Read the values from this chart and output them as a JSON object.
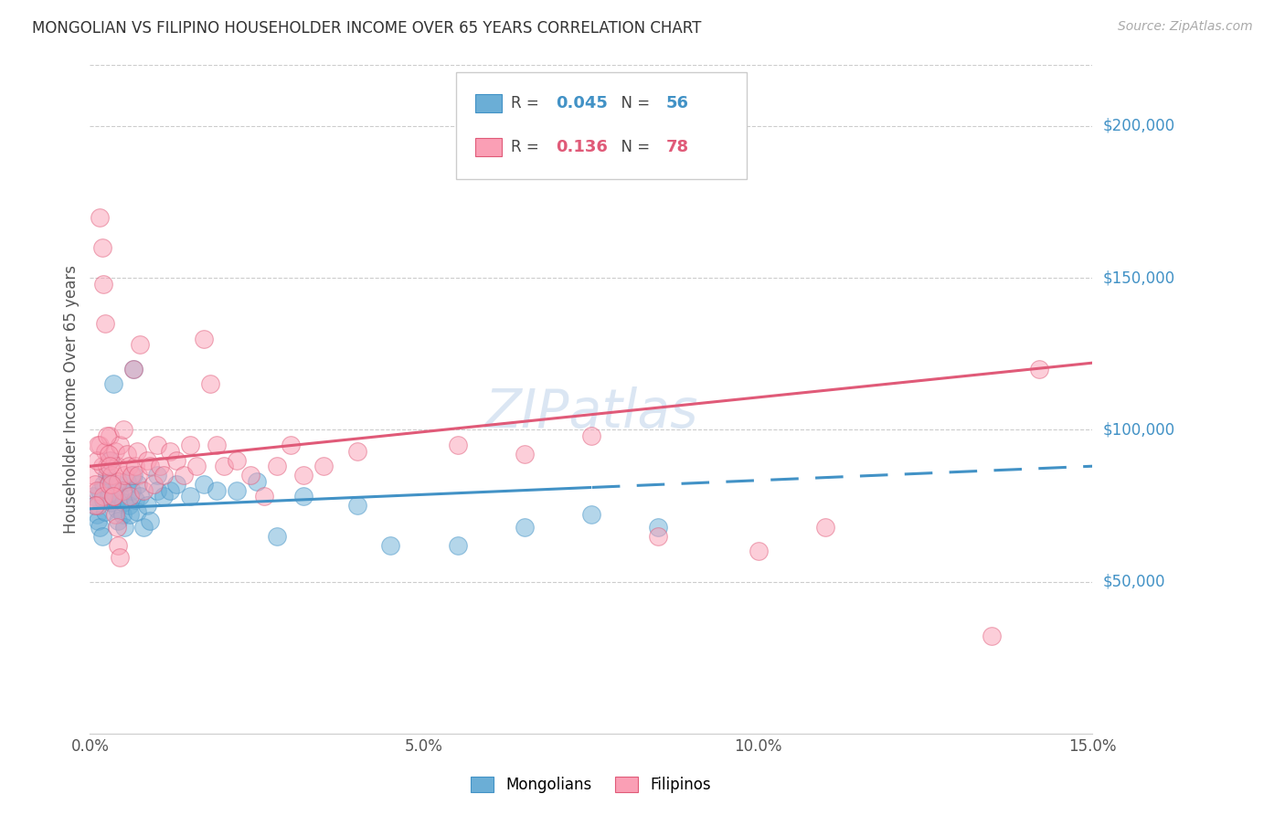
{
  "title": "MONGOLIAN VS FILIPINO HOUSEHOLDER INCOME OVER 65 YEARS CORRELATION CHART",
  "source": "Source: ZipAtlas.com",
  "ylabel": "Householder Income Over 65 years",
  "xlabel_ticks": [
    "0.0%",
    "5.0%",
    "10.0%",
    "15.0%"
  ],
  "xlabel_values": [
    0.0,
    5.0,
    10.0,
    15.0
  ],
  "ytick_labels": [
    "$50,000",
    "$100,000",
    "$150,000",
    "$200,000"
  ],
  "ytick_values": [
    50000,
    100000,
    150000,
    200000
  ],
  "xlim": [
    0.0,
    15.0
  ],
  "ylim": [
    0,
    220000
  ],
  "mongolian_color": "#6baed6",
  "filipino_color": "#fa9fb5",
  "mongolian_label": "Mongolians",
  "filipino_label": "Filipinos",
  "trend_blue": "#4292c6",
  "trend_pink": "#e05a78",
  "watermark": "ZIPatlas",
  "legend_R1_val": "0.045",
  "legend_N1_val": "56",
  "legend_R2_val": "0.136",
  "legend_N2_val": "78",
  "blue_line_x0": 0.0,
  "blue_line_y0": 74000,
  "blue_line_x1": 15.0,
  "blue_line_y1": 88000,
  "blue_solid_cutoff": 7.5,
  "pink_line_x0": 0.0,
  "pink_line_y0": 88000,
  "pink_line_x1": 15.0,
  "pink_line_y1": 122000,
  "mongolian_x": [
    0.05,
    0.08,
    0.1,
    0.12,
    0.15,
    0.15,
    0.18,
    0.2,
    0.2,
    0.22,
    0.25,
    0.28,
    0.3,
    0.3,
    0.32,
    0.35,
    0.38,
    0.4,
    0.4,
    0.42,
    0.45,
    0.48,
    0.5,
    0.5,
    0.52,
    0.55,
    0.58,
    0.6,
    0.62,
    0.65,
    0.65,
    0.68,
    0.7,
    0.72,
    0.75,
    0.8,
    0.85,
    0.9,
    1.0,
    1.0,
    1.1,
    1.2,
    1.3,
    1.5,
    1.7,
    1.9,
    2.2,
    2.5,
    2.8,
    3.2,
    4.0,
    4.5,
    5.5,
    6.5,
    7.5,
    8.5
  ],
  "mongolian_y": [
    78000,
    75000,
    72000,
    70000,
    80000,
    68000,
    65000,
    82000,
    77000,
    73000,
    85000,
    78000,
    90000,
    83000,
    76000,
    115000,
    79000,
    74000,
    82000,
    70000,
    78000,
    72000,
    80000,
    76000,
    68000,
    83000,
    75000,
    72000,
    80000,
    85000,
    120000,
    77000,
    73000,
    82000,
    78000,
    68000,
    75000,
    70000,
    85000,
    80000,
    78000,
    80000,
    82000,
    78000,
    82000,
    80000,
    80000,
    83000,
    65000,
    78000,
    75000,
    62000,
    62000,
    68000,
    72000,
    68000
  ],
  "filipino_x": [
    0.05,
    0.08,
    0.1,
    0.12,
    0.15,
    0.18,
    0.2,
    0.22,
    0.25,
    0.28,
    0.3,
    0.3,
    0.32,
    0.35,
    0.38,
    0.4,
    0.42,
    0.45,
    0.48,
    0.5,
    0.52,
    0.55,
    0.58,
    0.6,
    0.62,
    0.65,
    0.68,
    0.7,
    0.72,
    0.75,
    0.8,
    0.85,
    0.9,
    0.95,
    1.0,
    1.05,
    1.1,
    1.2,
    1.3,
    1.4,
    1.5,
    1.6,
    1.7,
    1.8,
    1.9,
    2.0,
    2.2,
    2.4,
    2.6,
    2.8,
    3.0,
    3.2,
    3.5,
    4.0,
    5.5,
    6.5,
    7.5,
    8.5,
    10.0,
    11.0,
    13.5,
    14.2,
    0.08,
    0.1,
    0.12,
    0.15,
    0.18,
    0.2,
    0.22,
    0.25,
    0.28,
    0.3,
    0.32,
    0.35,
    0.38,
    0.4,
    0.42,
    0.45
  ],
  "filipino_y": [
    85000,
    82000,
    80000,
    75000,
    95000,
    88000,
    78000,
    93000,
    88000,
    82000,
    98000,
    90000,
    85000,
    78000,
    93000,
    88000,
    83000,
    95000,
    80000,
    100000,
    85000,
    92000,
    88000,
    78000,
    85000,
    120000,
    88000,
    93000,
    85000,
    128000,
    80000,
    90000,
    88000,
    82000,
    95000,
    88000,
    85000,
    93000,
    90000,
    85000,
    95000,
    88000,
    130000,
    115000,
    95000,
    88000,
    90000,
    85000,
    78000,
    88000,
    95000,
    85000,
    88000,
    93000,
    95000,
    92000,
    98000,
    65000,
    60000,
    68000,
    32000,
    120000,
    75000,
    90000,
    95000,
    170000,
    160000,
    148000,
    135000,
    98000,
    92000,
    88000,
    82000,
    78000,
    72000,
    68000,
    62000,
    58000
  ]
}
